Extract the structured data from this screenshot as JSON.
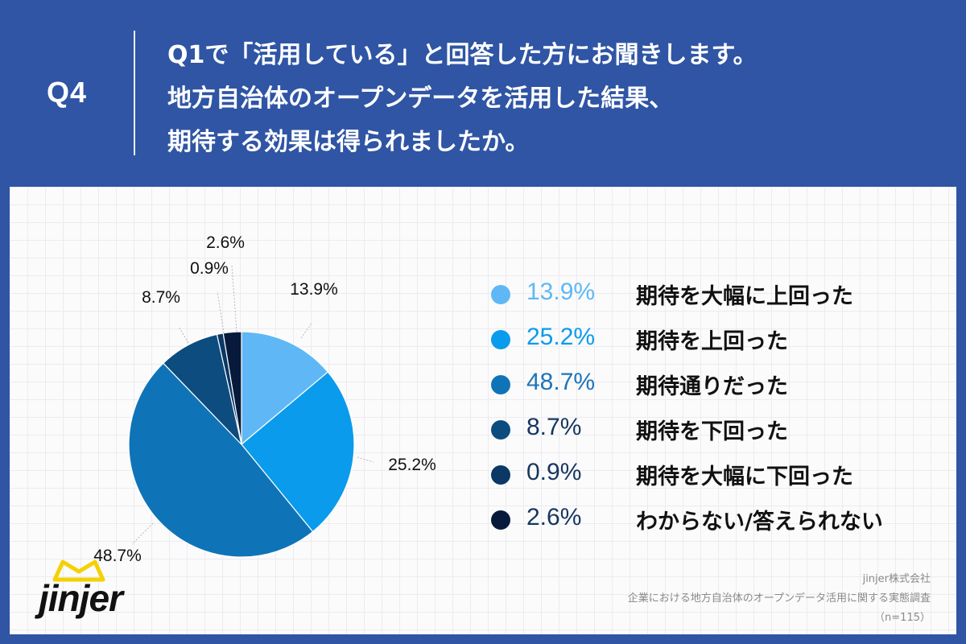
{
  "header": {
    "q_label": "Q4",
    "lines": [
      "Q1で「活用している」と回答した方にお聞きします。",
      "地方自治体のオープンデータを活用した結果、",
      "期待する効果は得られましたか。"
    ]
  },
  "colors": {
    "background": "#2f55a4",
    "panel": "#fbfbfc"
  },
  "chart_data": {
    "type": "pie",
    "title": "",
    "slices": [
      {
        "label": "期待を大幅に上回った",
        "value": 13.9,
        "display": "13.9%",
        "color": "#5fb8f5"
      },
      {
        "label": "期待を上回った",
        "value": 25.2,
        "display": "25.2%",
        "color": "#0a9bec"
      },
      {
        "label": "期待通りだった",
        "value": 48.7,
        "display": "48.7%",
        "color": "#0f74b7"
      },
      {
        "label": "期待を下回った",
        "value": 8.7,
        "display": "8.7%",
        "color": "#0c4c7e"
      },
      {
        "label": "期待を大幅に下回った",
        "value": 0.9,
        "display": "0.9%",
        "color": "#0b3864"
      },
      {
        "label": "わからない/答えられない",
        "value": 2.6,
        "display": "2.6%",
        "color": "#081a3b"
      }
    ],
    "legend_position": "right"
  },
  "logo": {
    "text": "jinjer"
  },
  "source": {
    "company": "jinjer株式会社",
    "survey": "企業における地方自治体のオープンデータ活用に関する実態調査",
    "n": "（n=115）"
  }
}
